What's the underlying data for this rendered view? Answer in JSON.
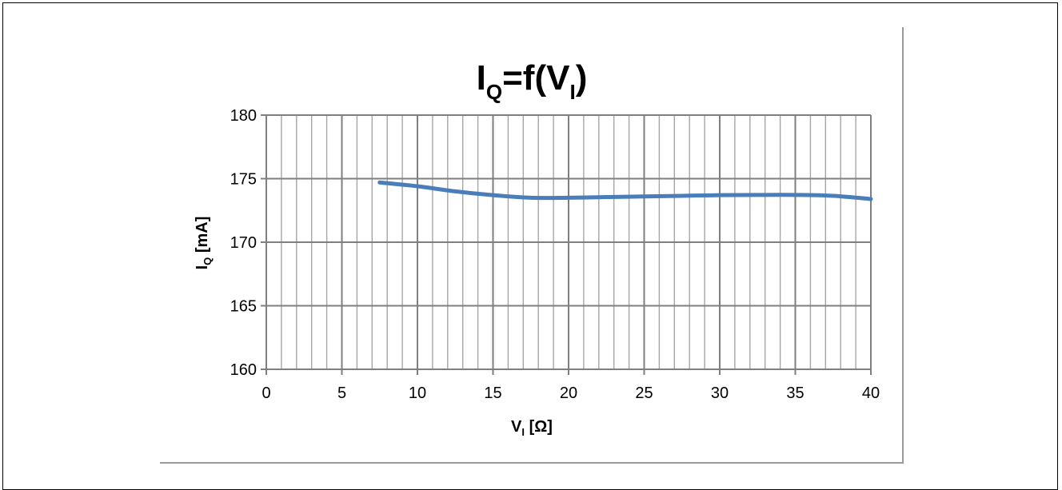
{
  "chart_data": {
    "type": "line",
    "title": {
      "main": "I",
      "sub": "Q",
      "mid": "=f(V",
      "sub2": "I",
      "end": ")"
    },
    "xlabel": {
      "main": "V",
      "sub": "I",
      "unit": " [Ω]"
    },
    "ylabel": {
      "main": "I",
      "sub": "Q",
      "unit": " [mA]"
    },
    "xlim": [
      0,
      40
    ],
    "ylim": [
      160,
      180
    ],
    "x_ticks": [
      "0",
      "5",
      "10",
      "15",
      "20",
      "25",
      "30",
      "35",
      "40"
    ],
    "y_ticks": [
      "180",
      "175",
      "170",
      "165",
      "160"
    ],
    "x_minor_step": 1,
    "y_major_step": 5,
    "grid": true,
    "legend": "none",
    "series": [
      {
        "color": "#4a7ebb",
        "x": [
          7.5,
          10,
          12.5,
          15,
          17.5,
          20,
          22.5,
          25,
          27.5,
          30,
          32.5,
          35,
          37.5,
          40
        ],
        "y": [
          174.7,
          174.4,
          174.0,
          173.7,
          173.5,
          173.5,
          173.55,
          173.6,
          173.65,
          173.7,
          173.72,
          173.72,
          173.65,
          173.4
        ]
      }
    ]
  }
}
